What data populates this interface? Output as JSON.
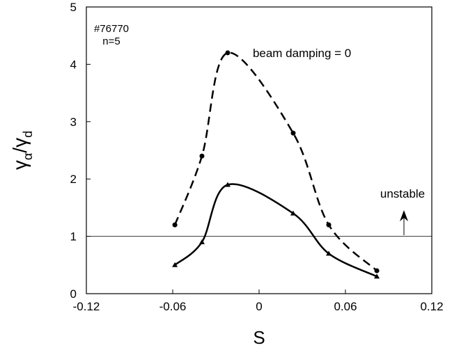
{
  "chart_data": {
    "type": "line",
    "xlabel": "S",
    "ylabel": [
      "γ",
      "α",
      "/γ",
      "d"
    ],
    "xlim": [
      -0.12,
      0.12
    ],
    "xticks": [
      -0.12,
      -0.06,
      0,
      0.06,
      0.12
    ],
    "ylim": [
      0,
      5
    ],
    "yticks": [
      0,
      1,
      2,
      3,
      4,
      5
    ],
    "hline": 1,
    "annotations": [
      "#76770",
      "n=5",
      "unstable"
    ],
    "series": [
      {
        "name": "beam damping = 0",
        "color": "#000000",
        "dash": true,
        "marker": "circle",
        "x": [
          -0.0585,
          -0.0397,
          -0.0218,
          0.0237,
          0.0484,
          0.0818
        ],
        "values": [
          1.2,
          2.4,
          4.2,
          2.8,
          1.2,
          0.4
        ]
      },
      {
        "color": "#000000",
        "dash": false,
        "marker": "triangle",
        "x": [
          -0.0585,
          -0.0397,
          -0.0218,
          0.0237,
          0.0484,
          0.0818
        ],
        "values": [
          0.5,
          0.9,
          1.9,
          1.4,
          0.7,
          0.3
        ]
      }
    ]
  }
}
